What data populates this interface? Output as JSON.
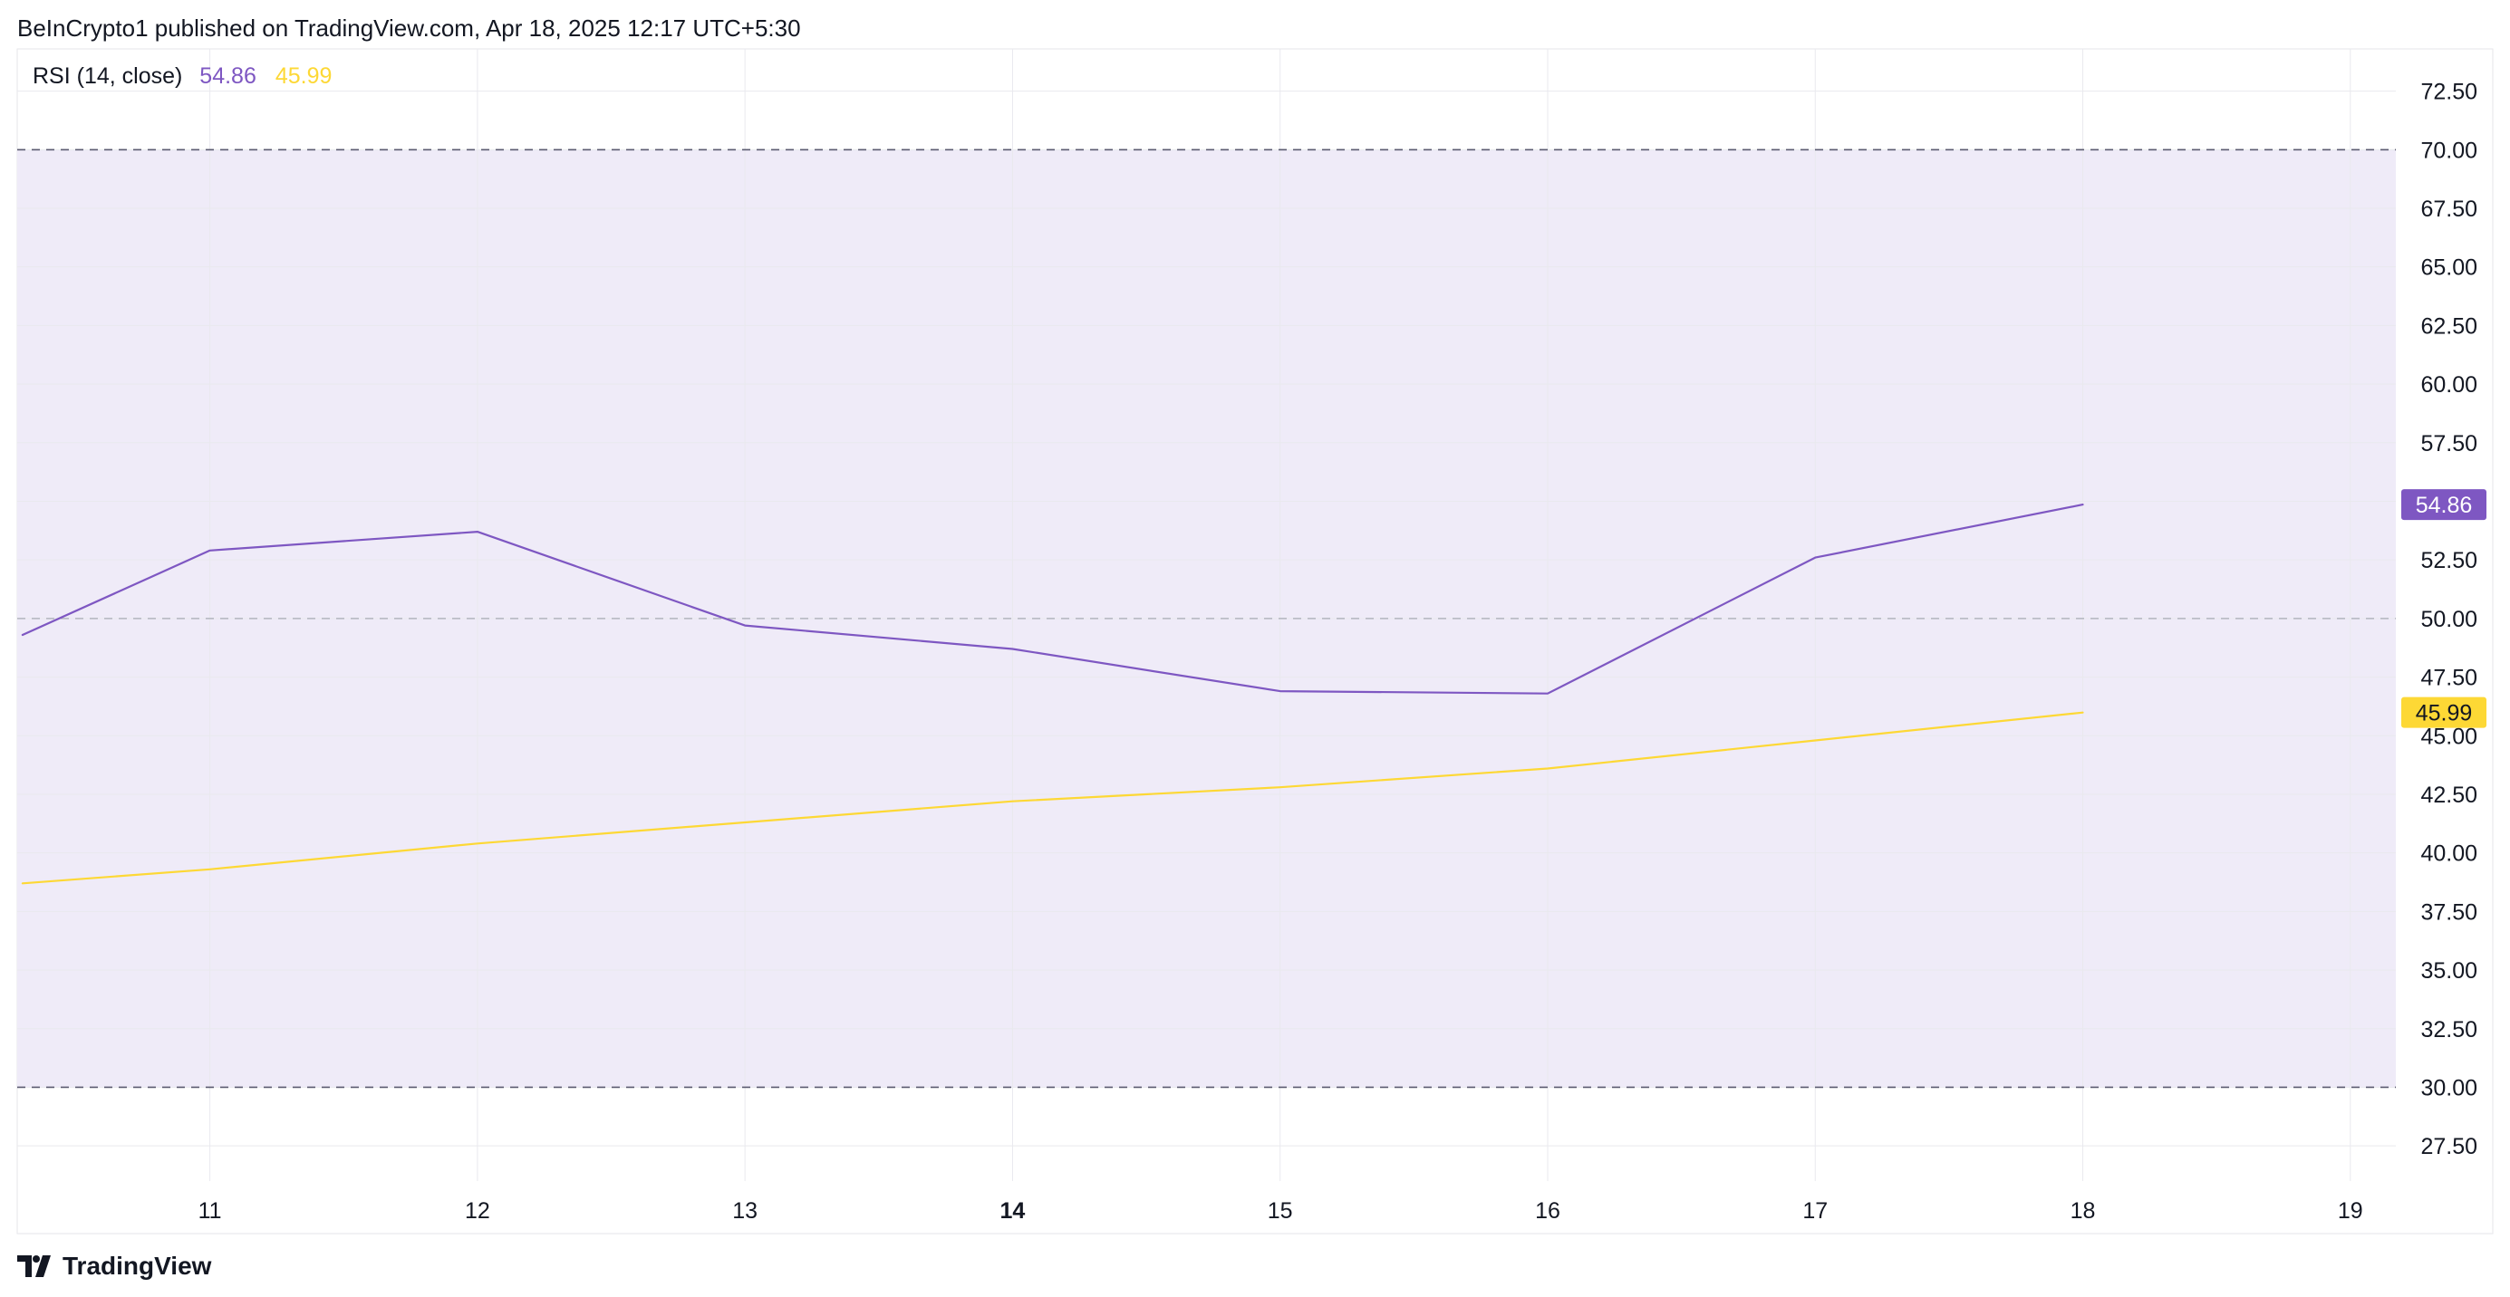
{
  "header": {
    "publisher_line": "BeInCrypto1 published on TradingView.com, Apr 18, 2025 12:17 UTC+5:30"
  },
  "legend": {
    "indicator": "RSI (14, close)",
    "rsi_value": "54.86",
    "ma_value": "45.99"
  },
  "footer": {
    "brand": "TradingView"
  },
  "colors": {
    "rsi_line": "#7e57c2",
    "ma_line": "#fdd835",
    "band_fill": "#efebf8",
    "grid": "#e9e9ee",
    "level_line": "#5b5b70",
    "mid_line": "#b2b5be",
    "text": "#131722"
  },
  "chart_data": {
    "type": "line",
    "x": [
      10.3,
      11,
      12,
      13,
      14,
      15,
      16,
      17,
      18
    ],
    "x_ticks": [
      "11",
      "12",
      "13",
      "14",
      "15",
      "16",
      "17",
      "18",
      "19"
    ],
    "x_tick_values": [
      11,
      12,
      13,
      14,
      15,
      16,
      17,
      18,
      19
    ],
    "bold_x_tick": "14",
    "xlim": [
      10.28,
      19.17
    ],
    "ylim": [
      26.0,
      74.3
    ],
    "y_ticks": [
      "27.50",
      "30.00",
      "32.50",
      "35.00",
      "37.50",
      "40.00",
      "42.50",
      "45.00",
      "47.50",
      "50.00",
      "52.50",
      "55.00",
      "57.50",
      "60.00",
      "62.50",
      "65.00",
      "67.50",
      "70.00",
      "72.50"
    ],
    "band": [
      30,
      70
    ],
    "levels": [
      70,
      50,
      30
    ],
    "series": [
      {
        "name": "RSI",
        "values": [
          49.3,
          52.9,
          53.7,
          49.7,
          48.7,
          46.9,
          46.8,
          52.6,
          54.86
        ],
        "last_label": "54.86"
      },
      {
        "name": "MA",
        "values": [
          38.7,
          39.3,
          40.4,
          41.3,
          42.2,
          42.8,
          43.6,
          44.8,
          45.99
        ],
        "last_label": "45.99"
      }
    ],
    "grid": true
  }
}
